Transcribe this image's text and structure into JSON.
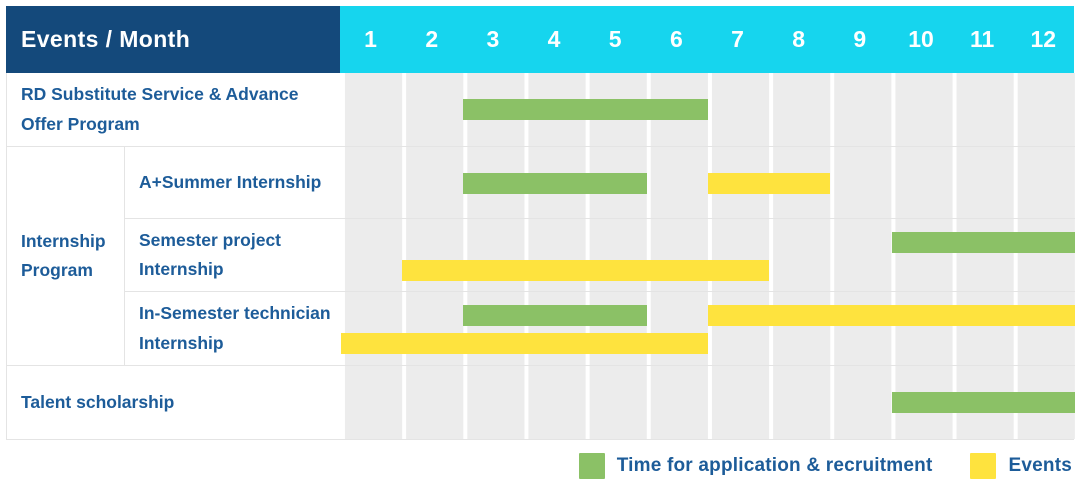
{
  "chart_data": {
    "type": "bar",
    "variant": "gantt-schedule",
    "title": "Events / Month",
    "xlabel": "Month",
    "months": [
      "1",
      "2",
      "3",
      "4",
      "5",
      "6",
      "7",
      "8",
      "9",
      "10",
      "11",
      "12"
    ],
    "x_range": [
      1,
      12
    ],
    "grid": true,
    "legend_position": "bottom-right",
    "colors": {
      "application": "#8bc166",
      "events": "#fee33e",
      "header_bg": "#14497b",
      "months_bg": "#16d5ee",
      "text": "#1d5c99",
      "grid_line": "#e4e4e4"
    },
    "legend": [
      {
        "key": "application",
        "label": "Time for application & recruitment"
      },
      {
        "key": "events",
        "label": "Events"
      }
    ],
    "rows": [
      {
        "label": "RD Substitute Service & Advance Offer Program",
        "lines": 1,
        "bars": [
          {
            "kind": "application",
            "start": 3,
            "end": 6,
            "line": 0
          }
        ]
      },
      {
        "group": "Internship Program",
        "label": "A+Summer Internship",
        "lines": 1,
        "bars": [
          {
            "kind": "application",
            "start": 3,
            "end": 5,
            "line": 0
          },
          {
            "kind": "events",
            "start": 7,
            "end": 8,
            "line": 0
          }
        ]
      },
      {
        "label": "Semester project Internship",
        "lines": 2,
        "bars": [
          {
            "kind": "application",
            "start": 10,
            "end": 12,
            "line": 0
          },
          {
            "kind": "events",
            "start": 2,
            "end": 7,
            "line": 1
          }
        ]
      },
      {
        "label": "In-Semester technician Internship",
        "lines": 2,
        "bars": [
          {
            "kind": "application",
            "start": 3,
            "end": 5,
            "line": 0
          },
          {
            "kind": "events",
            "start": 7,
            "end": 12,
            "line": 0
          },
          {
            "kind": "events",
            "start": 1,
            "end": 6,
            "line": 1
          }
        ]
      },
      {
        "label": "Talent scholarship",
        "lines": 1,
        "bars": [
          {
            "kind": "application",
            "start": 10,
            "end": 12,
            "line": 0
          }
        ]
      }
    ]
  }
}
